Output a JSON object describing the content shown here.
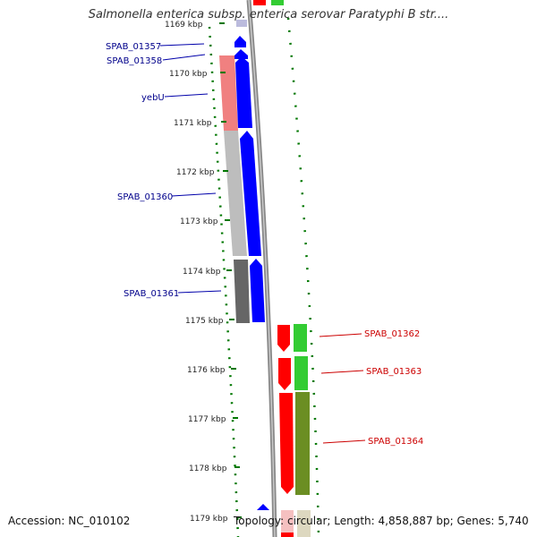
{
  "title": "Salmonella enterica subsp. enterica serovar Paratyphi B str....",
  "footer": {
    "accession": "Accession: NC_010102",
    "summary": "Topology: circular; Length: 4,858,887 bp; Genes: 5,740"
  },
  "ticks": [
    "1169 kbp",
    "1170 kbp",
    "1171 kbp",
    "1172 kbp",
    "1173 kbp",
    "1174 kbp",
    "1175 kbp",
    "1176 kbp",
    "1177 kbp",
    "1178 kbp",
    "1179 kbp"
  ],
  "gene_labels_left": [
    "SPAB_01357",
    "SPAB_01358",
    "yebU",
    "SPAB_01360",
    "SPAB_01361"
  ],
  "gene_labels_right": [
    "SPAB_01362",
    "SPAB_01363",
    "SPAB_01364"
  ],
  "colors": {
    "forward_cds": "#0000ff",
    "reverse_cds": "#ff0000",
    "gc_plus": "#33cc33",
    "gc_minus": "#6b8e23",
    "backbone": "#888888",
    "tick": "#007700",
    "label_blue": "#00008b",
    "label_red": "#cc0000"
  }
}
